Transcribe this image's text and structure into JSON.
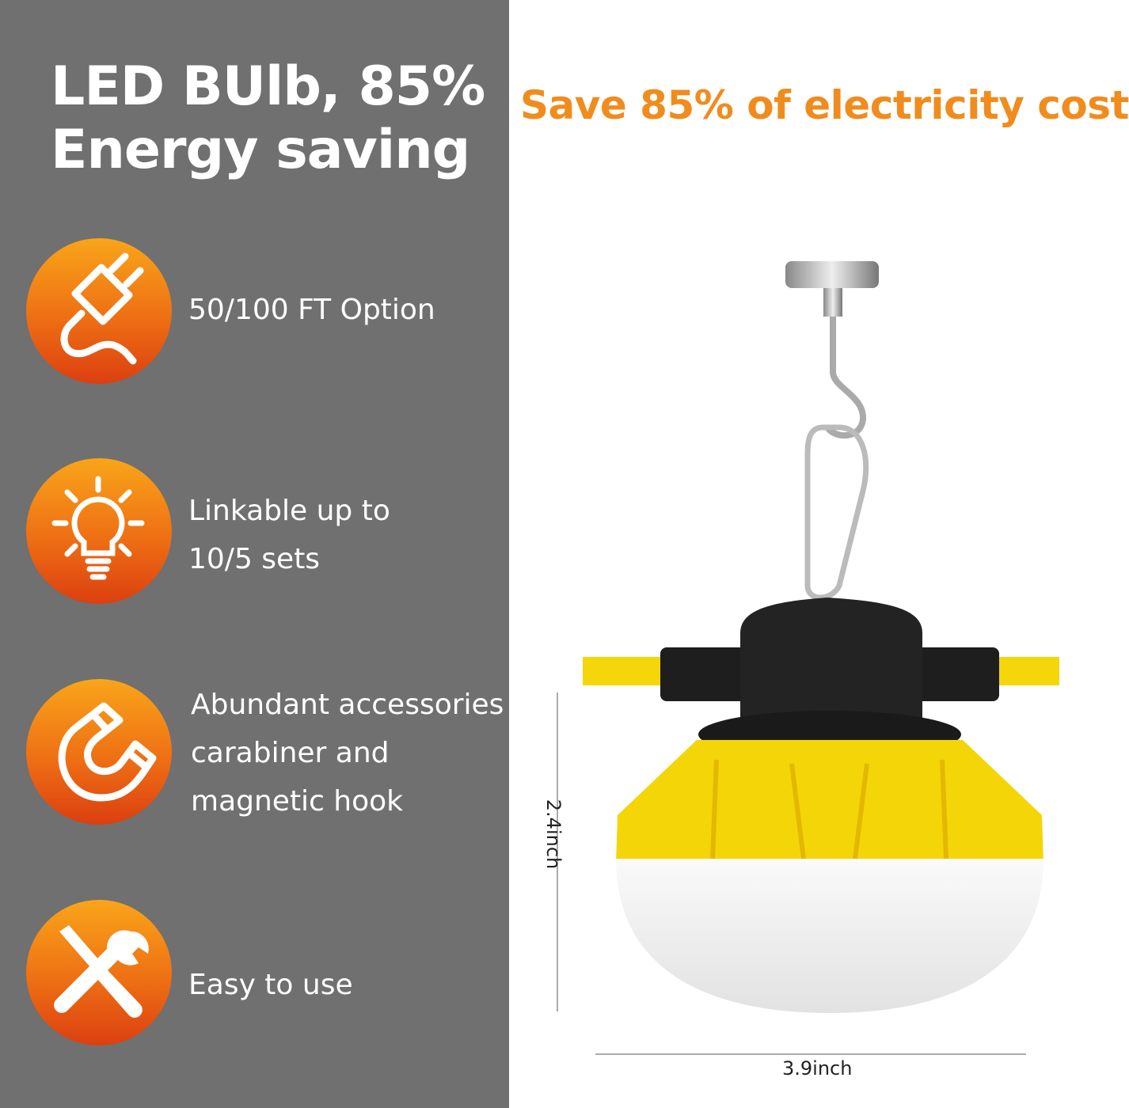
{
  "headline": {
    "line1": "LED BUlb, 85%",
    "line2": "Energy saving"
  },
  "features": [
    {
      "icon": "plug-icon",
      "lines": [
        "50/100 FT Option"
      ]
    },
    {
      "icon": "lightbulb-icon",
      "lines": [
        "Linkable up to",
        "10/5 sets"
      ]
    },
    {
      "icon": "magnet-icon",
      "lines": [
        "Abundant accessories",
        "carabiner and",
        "magnetic hook"
      ]
    },
    {
      "icon": "tools-icon",
      "lines": [
        "Easy to use"
      ]
    }
  ],
  "right_title": "Save 85% of electricity cost",
  "dimensions": {
    "height": "2.4inch",
    "width": "3.9inch"
  },
  "colors": {
    "panel": "#6f706f",
    "accent": "#f08c1e",
    "lamp_yellow": "#f5d90a"
  }
}
